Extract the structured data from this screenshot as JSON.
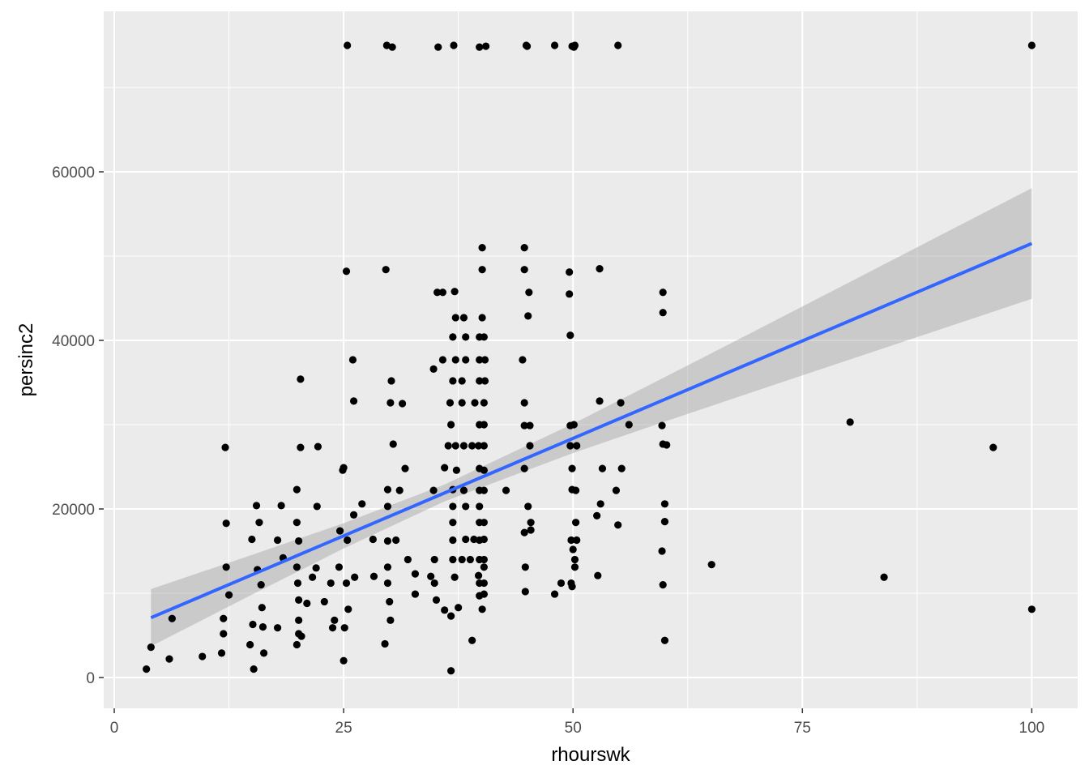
{
  "chart_data": {
    "type": "scatter",
    "title": "",
    "xlabel": "rhourswk",
    "ylabel": "persinc2",
    "xlim": [
      -1.15,
      105.0
    ],
    "ylim": [
      -3650,
      79040
    ],
    "xticks": [
      0,
      25,
      50,
      75,
      100
    ],
    "xtick_labels": [
      "0",
      "25",
      "50",
      "75",
      "100"
    ],
    "yticks": [
      0,
      20000,
      40000,
      60000
    ],
    "ytick_labels": [
      "0",
      "20000",
      "40000",
      "60000"
    ],
    "grid": true,
    "colors": {
      "panel": "#ebebeb",
      "grid": "#ffffff",
      "points": "#000000",
      "fit_line": "#3366ff",
      "band": "#999999"
    },
    "points": [
      [
        25.4,
        75000
      ],
      [
        29.7,
        75000
      ],
      [
        30.3,
        74800
      ],
      [
        35.3,
        74800
      ],
      [
        37,
        75000
      ],
      [
        39.8,
        74800
      ],
      [
        40.5,
        74900
      ],
      [
        44.9,
        75000
      ],
      [
        45,
        74900
      ],
      [
        48,
        75000
      ],
      [
        49.9,
        74900
      ],
      [
        50.2,
        75000
      ],
      [
        50.1,
        74800
      ],
      [
        54.9,
        75000
      ],
      [
        100,
        75000
      ],
      [
        3.5,
        1000
      ],
      [
        4,
        3600
      ],
      [
        6,
        2200
      ],
      [
        6.3,
        7000
      ],
      [
        9.6,
        2500
      ],
      [
        11.7,
        2900
      ],
      [
        11.9,
        7000
      ],
      [
        12.1,
        27300
      ],
      [
        12.2,
        18300
      ],
      [
        12.2,
        13100
      ],
      [
        12.5,
        9800
      ],
      [
        11.9,
        5200
      ],
      [
        15,
        16400
      ],
      [
        15.2,
        1000
      ],
      [
        15.5,
        20400
      ],
      [
        15.8,
        18400
      ],
      [
        15.6,
        12800
      ],
      [
        16,
        11000
      ],
      [
        16.1,
        8300
      ],
      [
        16.2,
        6000
      ],
      [
        16.3,
        2900
      ],
      [
        14.8,
        3900
      ],
      [
        15.1,
        6300
      ],
      [
        17.8,
        16300
      ],
      [
        18.2,
        20400
      ],
      [
        18.4,
        14200
      ],
      [
        17.8,
        5900
      ],
      [
        19.9,
        22300
      ],
      [
        19.9,
        18400
      ],
      [
        20.1,
        16200
      ],
      [
        20.3,
        27300
      ],
      [
        20.3,
        35400
      ],
      [
        19.9,
        13100
      ],
      [
        20,
        11200
      ],
      [
        20.1,
        9200
      ],
      [
        20.1,
        6800
      ],
      [
        20.1,
        5200
      ],
      [
        19.9,
        3900
      ],
      [
        20.4,
        4900
      ],
      [
        21,
        8800
      ],
      [
        21.6,
        11900
      ],
      [
        22.2,
        27400
      ],
      [
        22.1,
        20300
      ],
      [
        22,
        13000
      ],
      [
        22.9,
        9000
      ],
      [
        23.6,
        11200
      ],
      [
        23.8,
        5900
      ],
      [
        24,
        6800
      ],
      [
        24.5,
        13100
      ],
      [
        24.6,
        17400
      ],
      [
        24.9,
        24600
      ],
      [
        25,
        24900
      ],
      [
        25.3,
        48200
      ],
      [
        25,
        2000
      ],
      [
        25.1,
        5900
      ],
      [
        25.5,
        8100
      ],
      [
        25.3,
        11200
      ],
      [
        25.4,
        16300
      ],
      [
        26,
        37700
      ],
      [
        26.1,
        32800
      ],
      [
        26.2,
        11900
      ],
      [
        26.1,
        19300
      ],
      [
        27,
        20600
      ],
      [
        28.2,
        16400
      ],
      [
        28.3,
        12000
      ],
      [
        29.6,
        48400
      ],
      [
        29.5,
        4000
      ],
      [
        29.8,
        22300
      ],
      [
        29.8,
        20300
      ],
      [
        29.8,
        16200
      ],
      [
        29.8,
        13100
      ],
      [
        29.8,
        11200
      ],
      [
        30,
        9000
      ],
      [
        30.1,
        32600
      ],
      [
        30.2,
        35200
      ],
      [
        30.4,
        27700
      ],
      [
        30.1,
        6800
      ],
      [
        30.7,
        16300
      ],
      [
        31.1,
        22200
      ],
      [
        31.4,
        32500
      ],
      [
        31.7,
        24800
      ],
      [
        32,
        14000
      ],
      [
        32.8,
        12300
      ],
      [
        32.8,
        9900
      ],
      [
        34.5,
        12000
      ],
      [
        34.8,
        36600
      ],
      [
        34.8,
        22200
      ],
      [
        34.9,
        14000
      ],
      [
        34.9,
        11200
      ],
      [
        35.1,
        9200
      ],
      [
        35.2,
        45700
      ],
      [
        35.8,
        45700
      ],
      [
        35.8,
        37700
      ],
      [
        36,
        24900
      ],
      [
        36,
        8000
      ],
      [
        36.7,
        7300
      ],
      [
        36.7,
        800
      ],
      [
        36.4,
        27500
      ],
      [
        36.6,
        32600
      ],
      [
        36.7,
        30000
      ],
      [
        36.9,
        35200
      ],
      [
        36.9,
        40400
      ],
      [
        36.9,
        22300
      ],
      [
        36.9,
        20300
      ],
      [
        36.9,
        18400
      ],
      [
        36.9,
        16300
      ],
      [
        36.9,
        14000
      ],
      [
        37.1,
        11900
      ],
      [
        37.1,
        45800
      ],
      [
        37.2,
        42700
      ],
      [
        37.2,
        37700
      ],
      [
        37.2,
        27500
      ],
      [
        37.3,
        24600
      ],
      [
        37.5,
        8300
      ],
      [
        37.9,
        14000
      ],
      [
        37.9,
        35200
      ],
      [
        37.9,
        32600
      ],
      [
        38.1,
        42700
      ],
      [
        38.1,
        27500
      ],
      [
        38.1,
        22200
      ],
      [
        38.3,
        16400
      ],
      [
        38.3,
        40400
      ],
      [
        38.3,
        37700
      ],
      [
        38.3,
        20300
      ],
      [
        38.8,
        14000
      ],
      [
        39,
        4400
      ],
      [
        39,
        27500
      ],
      [
        39.2,
        16400
      ],
      [
        39.3,
        32600
      ],
      [
        39.7,
        27500
      ],
      [
        39.7,
        12100
      ],
      [
        39.8,
        40400
      ],
      [
        39.8,
        37700
      ],
      [
        39.8,
        35200
      ],
      [
        39.8,
        30000
      ],
      [
        39.8,
        24800
      ],
      [
        39.8,
        22200
      ],
      [
        39.8,
        20300
      ],
      [
        39.8,
        18400
      ],
      [
        39.8,
        16300
      ],
      [
        39.8,
        14000
      ],
      [
        39.8,
        11200
      ],
      [
        39.8,
        9700
      ],
      [
        40.1,
        8100
      ],
      [
        40.1,
        51000
      ],
      [
        40.1,
        48400
      ],
      [
        40.1,
        42700
      ],
      [
        40.3,
        40400
      ],
      [
        40.4,
        37700
      ],
      [
        40.4,
        35200
      ],
      [
        40.3,
        32600
      ],
      [
        40.3,
        30000
      ],
      [
        40.3,
        27500
      ],
      [
        40.3,
        24600
      ],
      [
        40.3,
        22200
      ],
      [
        40.3,
        18400
      ],
      [
        40.3,
        16400
      ],
      [
        40.3,
        14000
      ],
      [
        40.3,
        13100
      ],
      [
        40.3,
        11200
      ],
      [
        40.3,
        9900
      ],
      [
        42.7,
        22200
      ],
      [
        44.7,
        51000
      ],
      [
        44.7,
        48400
      ],
      [
        44.5,
        37700
      ],
      [
        44.7,
        32600
      ],
      [
        44.7,
        29900
      ],
      [
        44.7,
        24800
      ],
      [
        44.7,
        17200
      ],
      [
        44.8,
        13100
      ],
      [
        44.8,
        10200
      ],
      [
        45.1,
        20300
      ],
      [
        45.2,
        45700
      ],
      [
        45.1,
        42900
      ],
      [
        45.3,
        29900
      ],
      [
        45.3,
        27500
      ],
      [
        45.4,
        17500
      ],
      [
        45.4,
        18400
      ],
      [
        48,
        9900
      ],
      [
        48.7,
        11200
      ],
      [
        49.6,
        48100
      ],
      [
        49.6,
        45500
      ],
      [
        49.7,
        40600
      ],
      [
        49.7,
        29900
      ],
      [
        49.7,
        27500
      ],
      [
        49.9,
        24800
      ],
      [
        49.9,
        22300
      ],
      [
        49.8,
        16300
      ],
      [
        49.8,
        11200
      ],
      [
        49.9,
        10800
      ],
      [
        50.1,
        30000
      ],
      [
        50,
        15200
      ],
      [
        50.2,
        14000
      ],
      [
        50.2,
        13100
      ],
      [
        50.3,
        18400
      ],
      [
        50.4,
        16300
      ],
      [
        50.4,
        27500
      ],
      [
        50.3,
        22200
      ],
      [
        52.7,
        12100
      ],
      [
        52.6,
        19200
      ],
      [
        52.9,
        48500
      ],
      [
        52.9,
        32800
      ],
      [
        53,
        20600
      ],
      [
        53.2,
        24800
      ],
      [
        54.7,
        22200
      ],
      [
        54.9,
        18100
      ],
      [
        55.2,
        32600
      ],
      [
        55.3,
        24800
      ],
      [
        56.1,
        30000
      ],
      [
        59.8,
        45700
      ],
      [
        59.8,
        43300
      ],
      [
        59.7,
        29900
      ],
      [
        59.8,
        27700
      ],
      [
        60.2,
        27600
      ],
      [
        59.7,
        15000
      ],
      [
        59.8,
        11000
      ],
      [
        60,
        18500
      ],
      [
        60,
        20600
      ],
      [
        60,
        4400
      ],
      [
        65.1,
        13400
      ],
      [
        80.2,
        30300
      ],
      [
        83.9,
        11900
      ],
      [
        95.8,
        27300
      ],
      [
        100,
        8100
      ]
    ],
    "fit": {
      "method": "lm",
      "x": [
        4,
        15,
        25,
        36,
        50,
        60,
        70,
        80,
        90,
        100
      ],
      "y": [
        7100,
        12188,
        16813,
        21900,
        28375,
        33000,
        37625,
        42250,
        46875,
        51500
      ],
      "lower": [
        3700,
        9833,
        15313,
        20900,
        26637,
        30366,
        34030,
        37671,
        41301,
        44930
      ],
      "upper": [
        10500,
        14543,
        18313,
        22900,
        30113,
        35634,
        41220,
        46829,
        52449,
        58070
      ]
    }
  }
}
